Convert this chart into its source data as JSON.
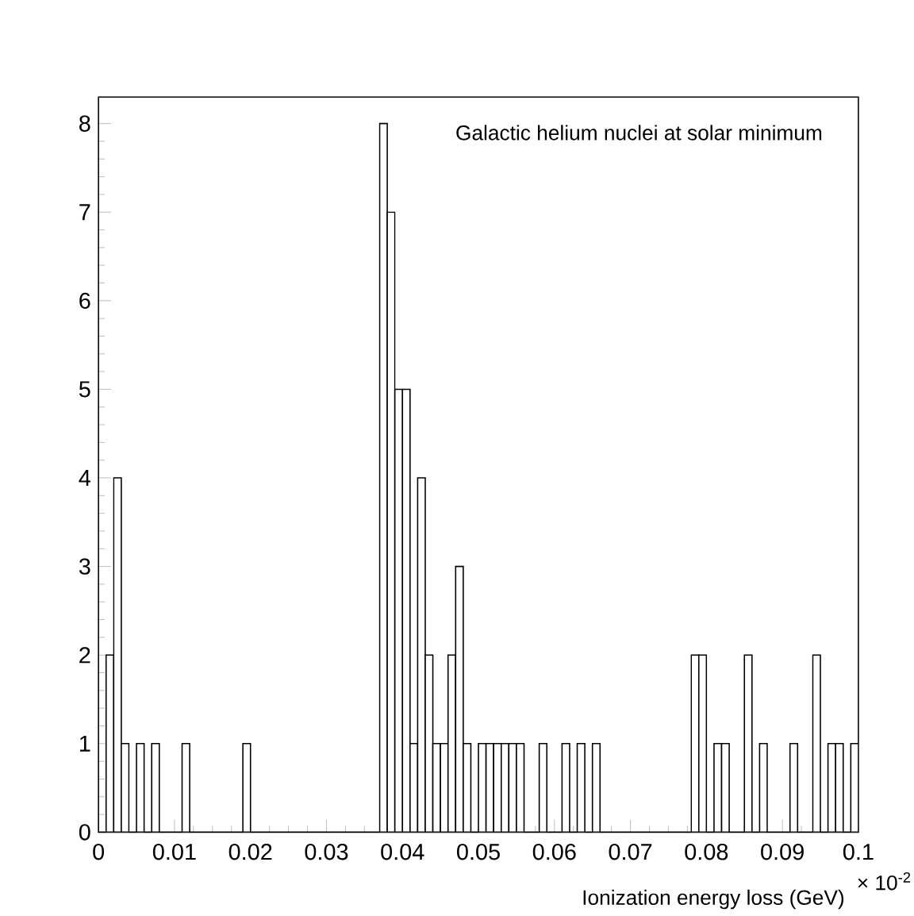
{
  "chart_data": {
    "type": "histogram",
    "title": "Galactic helium nuclei at solar minimum",
    "xlabel": "Ionization energy loss (GeV)",
    "annotations": [
      "× 10$^{-2}$"
    ],
    "bins": [
      0,
      0.001,
      0.002,
      0.003,
      0.004,
      0.005,
      0.006,
      0.007,
      0.008,
      0.009,
      0.01,
      0.011,
      0.012,
      0.013,
      0.014,
      0.015,
      0.016,
      0.017,
      0.018,
      0.019,
      0.02,
      0.021,
      0.022,
      0.023,
      0.024,
      0.025,
      0.026,
      0.027,
      0.028,
      0.029,
      0.03,
      0.031,
      0.032,
      0.033,
      0.034,
      0.035,
      0.036,
      0.037,
      0.038,
      0.039,
      0.04,
      0.041,
      0.042,
      0.043,
      0.044,
      0.045,
      0.046,
      0.047,
      0.048,
      0.049,
      0.05,
      0.051,
      0.052,
      0.053,
      0.054,
      0.055,
      0.056,
      0.057,
      0.058,
      0.059,
      0.06,
      0.061,
      0.062,
      0.063,
      0.064,
      0.065,
      0.066,
      0.067,
      0.068,
      0.069,
      0.07,
      0.071,
      0.072,
      0.073,
      0.074,
      0.075,
      0.076,
      0.077,
      0.078,
      0.079,
      0.08,
      0.081,
      0.082,
      0.083,
      0.084,
      0.085,
      0.086,
      0.087,
      0.088,
      0.089,
      0.09,
      0.091,
      0.092,
      0.093,
      0.094,
      0.095,
      0.096,
      0.097,
      0.098,
      0.099,
      0.1
    ],
    "values": [
      0,
      2,
      4,
      1,
      0,
      1,
      0,
      1,
      0,
      0,
      0,
      1,
      0,
      0,
      0,
      0,
      0,
      0,
      0,
      1,
      0,
      0,
      0,
      0,
      0,
      0,
      0,
      0,
      0,
      0,
      0,
      0,
      0,
      0,
      0,
      0,
      0,
      8,
      7,
      5,
      5,
      1,
      4,
      2,
      1,
      1,
      2,
      3,
      1,
      0,
      1,
      1,
      1,
      1,
      1,
      1,
      0,
      0,
      1,
      0,
      0,
      1,
      0,
      1,
      0,
      1,
      0,
      0,
      0,
      0,
      0,
      0,
      0,
      0,
      0,
      0,
      0,
      0,
      2,
      2,
      0,
      1,
      1,
      0,
      0,
      2,
      0,
      1,
      0,
      0,
      0,
      1,
      0,
      0,
      2,
      0,
      1,
      1,
      0,
      1
    ],
    "color": "#000000",
    "xlim": [
      0,
      0.1
    ],
    "ylim": [
      0,
      8.3
    ],
    "xticks": [
      0,
      0.01,
      0.02,
      0.03,
      0.04,
      0.05,
      0.06,
      0.07,
      0.08,
      0.09,
      0.1
    ],
    "yticks": [
      0,
      1,
      2,
      3,
      4,
      5,
      6,
      7,
      8
    ]
  }
}
